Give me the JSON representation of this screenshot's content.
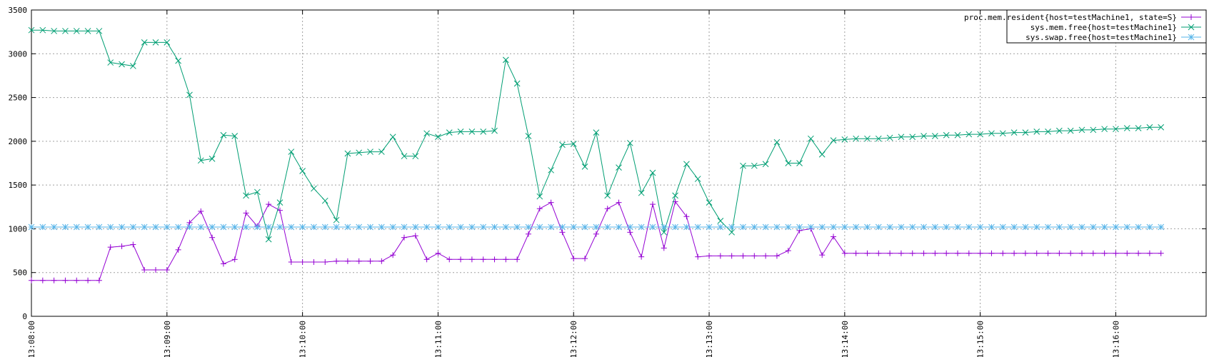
{
  "chart_data": {
    "type": "line",
    "title": "",
    "xlabel": "",
    "ylabel": "",
    "grid": true,
    "legend_position": "top-right",
    "ylim": [
      0,
      3500
    ],
    "yticks": [
      0,
      500,
      1000,
      1500,
      2000,
      2500,
      3000,
      3500
    ],
    "xlim": [
      "13:08:00",
      "13:16:40"
    ],
    "xticks": [
      "13:08:00",
      "13:09:00",
      "13:10:00",
      "13:11:00",
      "13:12:00",
      "13:13:00",
      "13:14:00",
      "13:15:00",
      "13:16:00"
    ],
    "x": [
      "13:08:00",
      "13:08:05",
      "13:08:10",
      "13:08:15",
      "13:08:20",
      "13:08:25",
      "13:08:30",
      "13:08:35",
      "13:08:40",
      "13:08:45",
      "13:08:50",
      "13:08:55",
      "13:09:00",
      "13:09:05",
      "13:09:10",
      "13:09:15",
      "13:09:20",
      "13:09:25",
      "13:09:30",
      "13:09:35",
      "13:09:40",
      "13:09:45",
      "13:09:50",
      "13:09:55",
      "13:10:00",
      "13:10:05",
      "13:10:10",
      "13:10:15",
      "13:10:20",
      "13:10:25",
      "13:10:30",
      "13:10:35",
      "13:10:40",
      "13:10:45",
      "13:10:50",
      "13:10:55",
      "13:11:00",
      "13:11:05",
      "13:11:10",
      "13:11:15",
      "13:11:20",
      "13:11:25",
      "13:11:30",
      "13:11:35",
      "13:11:40",
      "13:11:45",
      "13:11:50",
      "13:11:55",
      "13:12:00",
      "13:12:05",
      "13:12:10",
      "13:12:15",
      "13:12:20",
      "13:12:25",
      "13:12:30",
      "13:12:35",
      "13:12:40",
      "13:12:45",
      "13:12:50",
      "13:12:55",
      "13:13:00",
      "13:13:05",
      "13:13:10",
      "13:13:15",
      "13:13:20",
      "13:13:25",
      "13:13:30",
      "13:13:35",
      "13:13:40",
      "13:13:45",
      "13:13:50",
      "13:13:55",
      "13:14:00",
      "13:14:05",
      "13:14:10",
      "13:14:15",
      "13:14:20",
      "13:14:25",
      "13:14:30",
      "13:14:35",
      "13:14:40",
      "13:14:45",
      "13:14:50",
      "13:14:55",
      "13:15:00",
      "13:15:05",
      "13:15:10",
      "13:15:15",
      "13:15:20",
      "13:15:25",
      "13:15:30",
      "13:15:35",
      "13:15:40",
      "13:15:45",
      "13:15:50",
      "13:15:55",
      "13:16:00",
      "13:16:05",
      "13:16:10",
      "13:16:15",
      "13:16:20"
    ],
    "series": [
      {
        "name": "proc.mem.resident{host=testMachine1, state=S}",
        "color": "#9400d3",
        "marker": "plus",
        "values": [
          410,
          410,
          410,
          410,
          410,
          410,
          410,
          790,
          800,
          820,
          530,
          530,
          530,
          760,
          1070,
          1200,
          900,
          600,
          650,
          1180,
          1030,
          1280,
          1210,
          620,
          620,
          620,
          620,
          630,
          630,
          630,
          630,
          630,
          700,
          900,
          920,
          650,
          720,
          650,
          650,
          650,
          650,
          650,
          650,
          650,
          940,
          1230,
          1300,
          960,
          660,
          660,
          940,
          1230,
          1300,
          960,
          680,
          1280,
          780,
          1310,
          1140,
          680,
          690,
          690,
          690,
          690,
          690,
          690,
          690,
          750,
          980,
          1000,
          700,
          910,
          720,
          720,
          720,
          720,
          720,
          720,
          720,
          720,
          720,
          720,
          720,
          720,
          720,
          720,
          720,
          720,
          720,
          720,
          720,
          720,
          720,
          720,
          720,
          720,
          720,
          720,
          720,
          720,
          720
        ]
      },
      {
        "name": "sys.mem.free{host=testMachine1}",
        "color": "#009e73",
        "marker": "x",
        "values": [
          3270,
          3270,
          3260,
          3260,
          3260,
          3260,
          3260,
          2900,
          2880,
          2860,
          3130,
          3130,
          3130,
          2920,
          2530,
          1780,
          1800,
          2070,
          2060,
          1380,
          1420,
          880,
          1300,
          1880,
          1660,
          1460,
          1320,
          1100,
          1860,
          1870,
          1880,
          1880,
          2050,
          1830,
          1830,
          2090,
          2050,
          2100,
          2110,
          2110,
          2110,
          2120,
          2930,
          2660,
          2060,
          1370,
          1670,
          1960,
          1970,
          1710,
          2100,
          1380,
          1700,
          1980,
          1410,
          1640,
          960,
          1380,
          1740,
          1570,
          1300,
          1090,
          960,
          1720,
          1720,
          1740,
          1990,
          1750,
          1750,
          2030,
          1850,
          2010,
          2020,
          2030,
          2030,
          2030,
          2040,
          2050,
          2050,
          2060,
          2060,
          2070,
          2070,
          2080,
          2080,
          2090,
          2090,
          2100,
          2100,
          2110,
          2110,
          2120,
          2120,
          2130,
          2130,
          2140,
          2140,
          2150,
          2150,
          2160,
          2160
        ]
      },
      {
        "name": "sys.swap.free{host=testMachine1}",
        "color": "#56b4e9",
        "marker": "star",
        "values": [
          1020,
          1020,
          1020,
          1020,
          1020,
          1020,
          1020,
          1020,
          1020,
          1020,
          1020,
          1020,
          1020,
          1020,
          1020,
          1020,
          1020,
          1020,
          1020,
          1020,
          1020,
          1020,
          1020,
          1020,
          1020,
          1020,
          1020,
          1020,
          1020,
          1020,
          1020,
          1020,
          1020,
          1020,
          1020,
          1020,
          1020,
          1020,
          1020,
          1020,
          1020,
          1020,
          1020,
          1020,
          1020,
          1020,
          1020,
          1020,
          1020,
          1020,
          1020,
          1020,
          1020,
          1020,
          1020,
          1020,
          1020,
          1020,
          1020,
          1020,
          1020,
          1020,
          1020,
          1020,
          1020,
          1020,
          1020,
          1020,
          1020,
          1020,
          1020,
          1020,
          1020,
          1020,
          1020,
          1020,
          1020,
          1020,
          1020,
          1020,
          1020,
          1020,
          1020,
          1020,
          1020,
          1020,
          1020,
          1020,
          1020,
          1020,
          1020,
          1020,
          1020,
          1020,
          1020,
          1020,
          1020,
          1020,
          1020,
          1020,
          1020
        ]
      }
    ]
  }
}
